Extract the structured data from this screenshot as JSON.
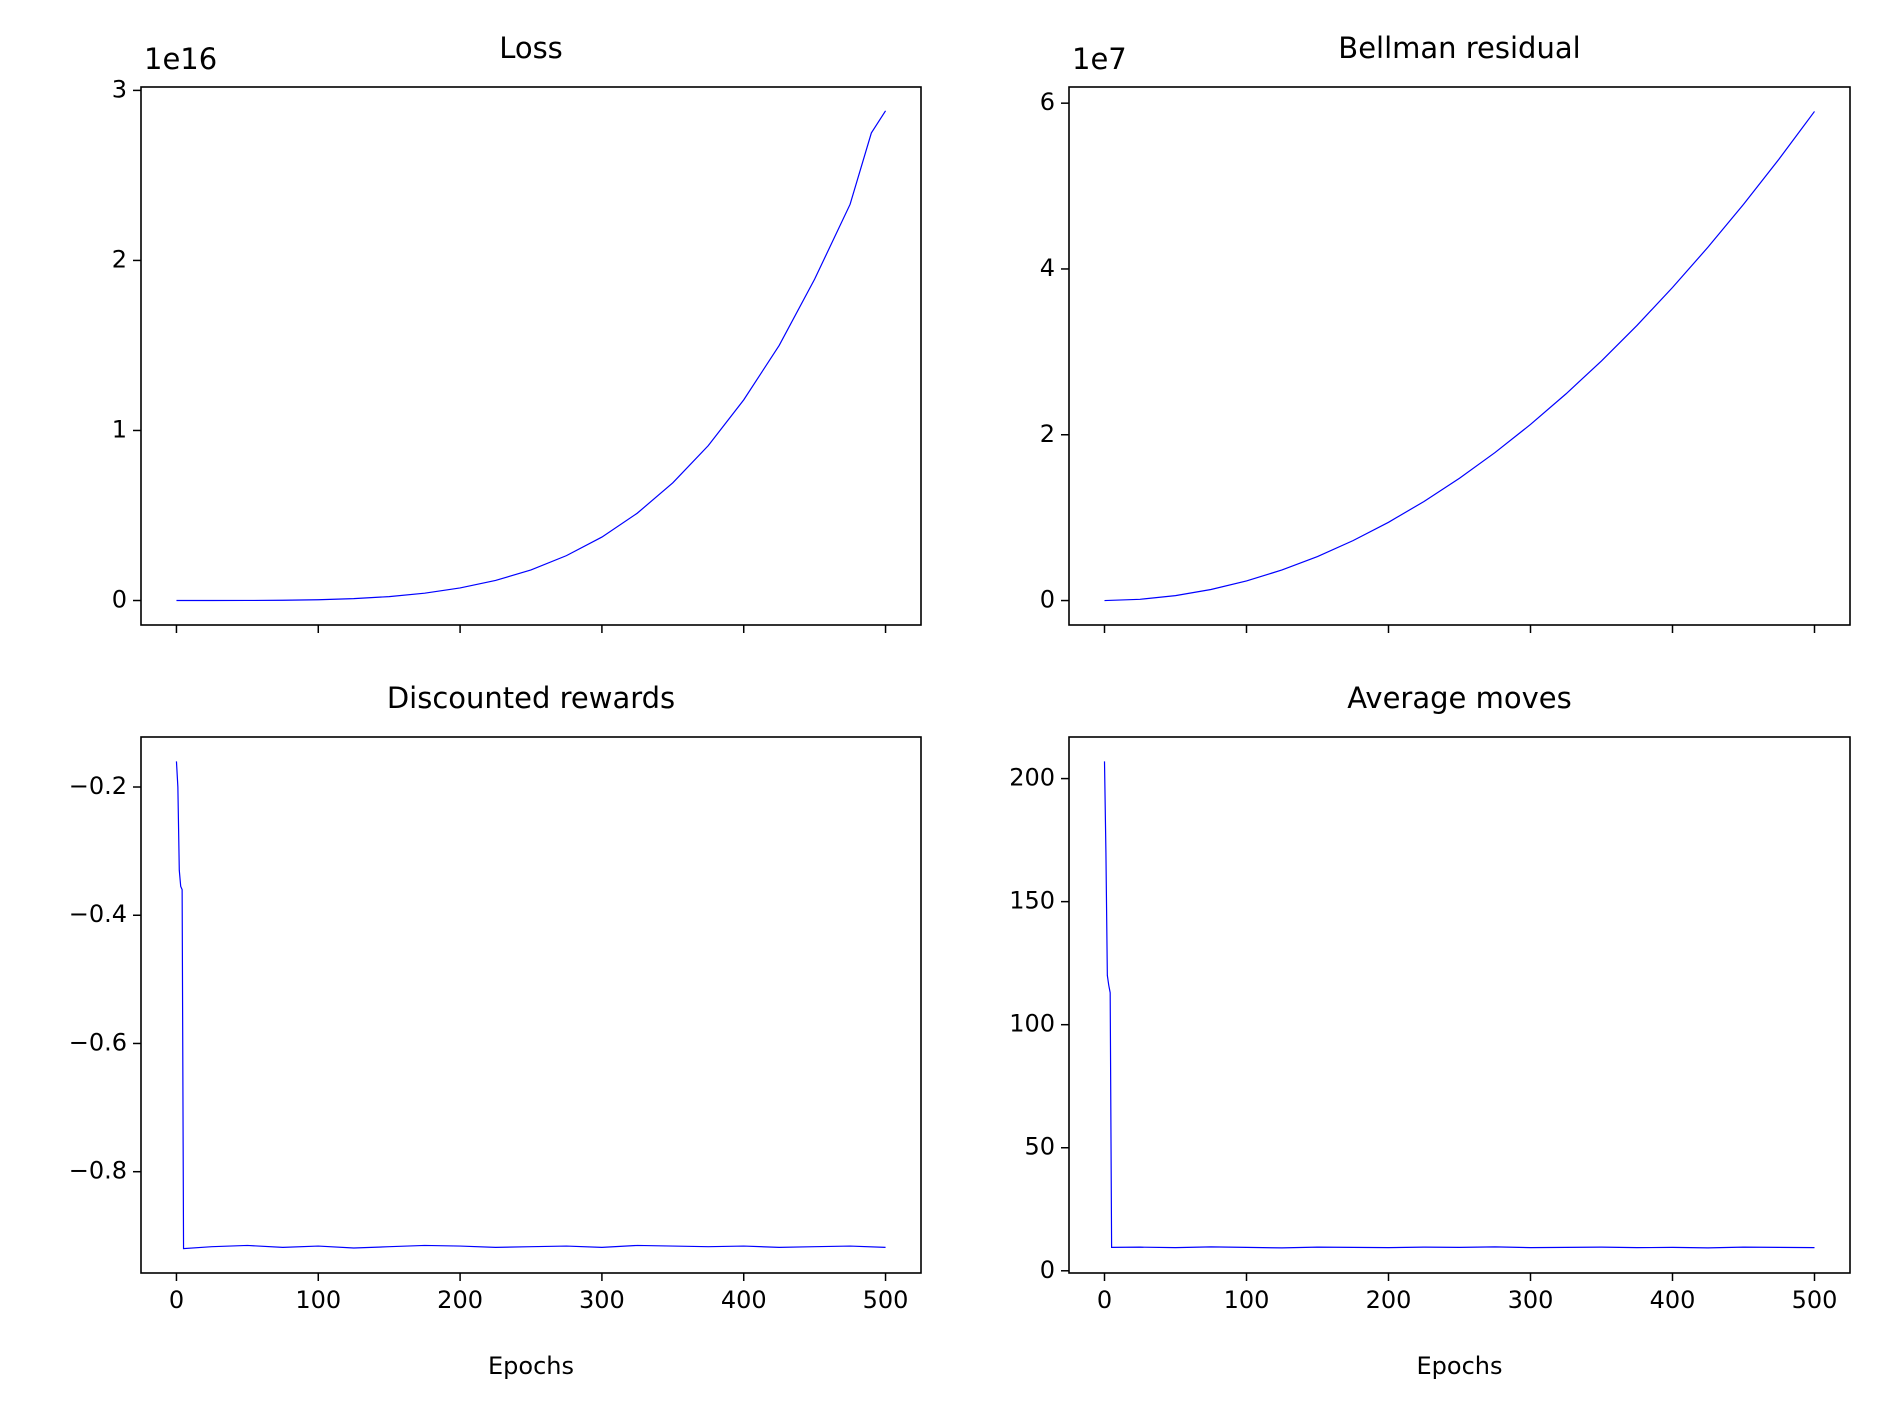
{
  "chart_data": [
    {
      "type": "line",
      "title": "Loss",
      "y_offset_label": "1e16",
      "color": "#0000ff",
      "x": [
        0,
        25,
        50,
        75,
        100,
        125,
        150,
        175,
        200,
        225,
        250,
        275,
        300,
        325,
        350,
        375,
        400,
        425,
        450,
        475,
        490,
        500
      ],
      "values": [
        0,
        2e-05,
        0.0003,
        0.0015,
        0.0046,
        0.011,
        0.023,
        0.043,
        0.074,
        0.118,
        0.18,
        0.264,
        0.373,
        0.514,
        0.692,
        0.911,
        1.18,
        1.5,
        1.89,
        2.33,
        2.75,
        2.88
      ],
      "xlim": [
        -25,
        525
      ],
      "ylim": [
        -0.144,
        3.02
      ],
      "yticks": [
        0,
        1,
        2,
        3
      ]
    },
    {
      "type": "line",
      "title": "Bellman residual",
      "y_offset_label": "1e7",
      "color": "#0000ff",
      "x": [
        0,
        25,
        50,
        75,
        100,
        125,
        150,
        175,
        200,
        225,
        250,
        275,
        300,
        325,
        350,
        375,
        400,
        425,
        450,
        475,
        500
      ],
      "values": [
        0,
        0.015,
        0.059,
        0.133,
        0.236,
        0.369,
        0.531,
        0.723,
        0.944,
        1.195,
        1.475,
        1.785,
        2.124,
        2.493,
        2.891,
        3.319,
        3.776,
        4.263,
        4.779,
        5.325,
        5.9
      ],
      "xlim": [
        -25,
        525
      ],
      "ylim": [
        -0.295,
        6.195
      ],
      "yticks": [
        0,
        2,
        4,
        6
      ]
    },
    {
      "type": "line",
      "title": "Discounted rewards",
      "xlabel": "Epochs",
      "color": "#0000ff",
      "x": [
        0,
        1,
        2,
        3,
        4,
        5,
        25,
        50,
        75,
        100,
        125,
        150,
        175,
        200,
        225,
        250,
        275,
        300,
        325,
        350,
        375,
        400,
        425,
        450,
        475,
        500
      ],
      "values": [
        -0.16,
        -0.2,
        -0.33,
        -0.355,
        -0.36,
        -0.92,
        -0.917,
        -0.915,
        -0.918,
        -0.916,
        -0.919,
        -0.917,
        -0.915,
        -0.916,
        -0.918,
        -0.917,
        -0.916,
        -0.918,
        -0.915,
        -0.916,
        -0.917,
        -0.916,
        -0.918,
        -0.917,
        -0.916,
        -0.918
      ],
      "xlim": [
        -25,
        525
      ],
      "ylim": [
        -0.958,
        -0.122
      ],
      "xticks": [
        0,
        100,
        200,
        300,
        400,
        500
      ],
      "yticks": [
        {
          "value": -0.2,
          "label": "−0.2"
        },
        {
          "value": -0.4,
          "label": "−0.4"
        },
        {
          "value": -0.6,
          "label": "−0.6"
        },
        {
          "value": -0.8,
          "label": "−0.8"
        }
      ]
    },
    {
      "type": "line",
      "title": "Average moves",
      "xlabel": "Epochs",
      "color": "#0000ff",
      "x": [
        0,
        1,
        2,
        3,
        4,
        5,
        25,
        50,
        75,
        100,
        125,
        150,
        175,
        200,
        225,
        250,
        275,
        300,
        325,
        350,
        375,
        400,
        425,
        450,
        475,
        500
      ],
      "values": [
        207,
        170,
        120,
        116,
        113,
        9.5,
        9.6,
        9.4,
        9.7,
        9.5,
        9.3,
        9.6,
        9.5,
        9.4,
        9.6,
        9.5,
        9.7,
        9.4,
        9.5,
        9.6,
        9.4,
        9.5,
        9.3,
        9.6,
        9.5,
        9.4
      ],
      "xlim": [
        -25,
        525
      ],
      "ylim": [
        -0.9,
        216.9
      ],
      "xticks": [
        0,
        100,
        200,
        300,
        400,
        500
      ],
      "yticks": [
        0,
        50,
        100,
        150,
        200
      ]
    }
  ]
}
